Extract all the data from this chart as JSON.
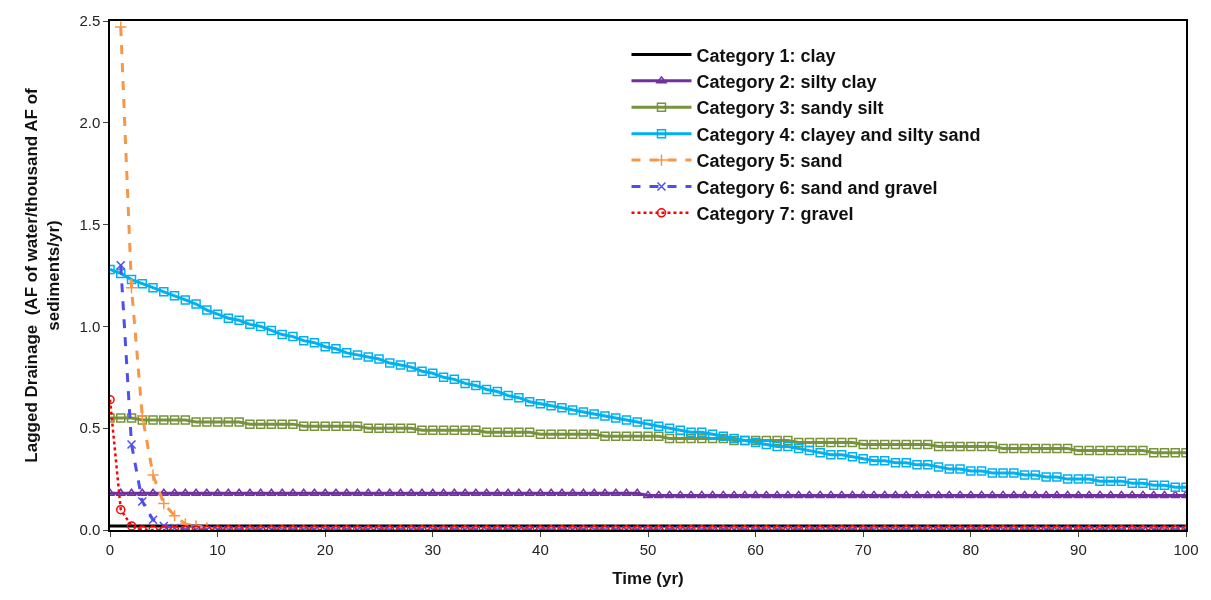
{
  "chart_data": {
    "type": "line",
    "xlabel": "Time (yr)",
    "ylabel": "Lagged Drainage  (AF of water/thousand AF of sediments/yr)",
    "x": [
      0,
      1,
      2,
      3,
      4,
      5,
      6,
      7,
      8,
      9,
      10,
      11,
      12,
      13,
      14,
      15,
      16,
      17,
      18,
      19,
      20,
      21,
      22,
      23,
      24,
      25,
      26,
      27,
      28,
      29,
      30,
      31,
      32,
      33,
      34,
      35,
      36,
      37,
      38,
      39,
      40,
      41,
      42,
      43,
      44,
      45,
      46,
      47,
      48,
      49,
      50,
      51,
      52,
      53,
      54,
      55,
      56,
      57,
      58,
      59,
      60,
      61,
      62,
      63,
      64,
      65,
      66,
      67,
      68,
      69,
      70,
      71,
      72,
      73,
      74,
      75,
      76,
      77,
      78,
      79,
      80,
      81,
      82,
      83,
      84,
      85,
      86,
      87,
      88,
      89,
      90,
      91,
      92,
      93,
      94,
      95,
      96,
      97,
      98,
      99,
      100
    ],
    "xlim": [
      0,
      100
    ],
    "xticks": [
      0,
      10,
      20,
      30,
      40,
      50,
      60,
      70,
      80,
      90,
      100
    ],
    "ylim": [
      0,
      2.5
    ],
    "yticks": [
      {
        "value": 0,
        "label": "0.0"
      },
      {
        "value": 0.5,
        "label": "0.5"
      },
      {
        "value": 1,
        "label": "1.0"
      },
      {
        "value": 1.5,
        "label": "1.5"
      },
      {
        "value": 2,
        "label": "2.0"
      },
      {
        "value": 2.5,
        "label": "2.5"
      }
    ],
    "legend": "top right",
    "series": [
      {
        "name": "Category 1: clay",
        "color": "#000000",
        "marker": "none",
        "line_style": "solid",
        "values": [
          0.02,
          0.02,
          0.02,
          0.02,
          0.02,
          0.02,
          0.02,
          0.02,
          0.02,
          0.02,
          0.02,
          0.02,
          0.02,
          0.02,
          0.02,
          0.02,
          0.02,
          0.02,
          0.02,
          0.02,
          0.02,
          0.02,
          0.02,
          0.02,
          0.02,
          0.02,
          0.02,
          0.02,
          0.02,
          0.02,
          0.02,
          0.02,
          0.02,
          0.02,
          0.02,
          0.02,
          0.02,
          0.02,
          0.02,
          0.02,
          0.02,
          0.02,
          0.02,
          0.02,
          0.02,
          0.02,
          0.02,
          0.02,
          0.02,
          0.02,
          0.02,
          0.02,
          0.02,
          0.02,
          0.02,
          0.02,
          0.02,
          0.02,
          0.02,
          0.02,
          0.02,
          0.02,
          0.02,
          0.02,
          0.02,
          0.02,
          0.02,
          0.02,
          0.02,
          0.02,
          0.02,
          0.02,
          0.02,
          0.02,
          0.02,
          0.02,
          0.02,
          0.02,
          0.02,
          0.02,
          0.02,
          0.02,
          0.02,
          0.02,
          0.02,
          0.02,
          0.02,
          0.02,
          0.02,
          0.02,
          0.02,
          0.02,
          0.02,
          0.02,
          0.02,
          0.02,
          0.02,
          0.02,
          0.02,
          0.02,
          0.02
        ]
      },
      {
        "name": "Category 2: silty clay",
        "color": "#7030a0",
        "marker": "triangle",
        "line_style": "solid",
        "values": [
          0.18,
          0.18,
          0.18,
          0.18,
          0.18,
          0.18,
          0.18,
          0.18,
          0.18,
          0.18,
          0.18,
          0.18,
          0.18,
          0.18,
          0.18,
          0.18,
          0.18,
          0.18,
          0.18,
          0.18,
          0.18,
          0.18,
          0.18,
          0.18,
          0.18,
          0.18,
          0.18,
          0.18,
          0.18,
          0.18,
          0.18,
          0.18,
          0.18,
          0.18,
          0.18,
          0.18,
          0.18,
          0.18,
          0.18,
          0.18,
          0.18,
          0.18,
          0.18,
          0.18,
          0.18,
          0.18,
          0.18,
          0.18,
          0.18,
          0.18,
          0.17,
          0.17,
          0.17,
          0.17,
          0.17,
          0.17,
          0.17,
          0.17,
          0.17,
          0.17,
          0.17,
          0.17,
          0.17,
          0.17,
          0.17,
          0.17,
          0.17,
          0.17,
          0.17,
          0.17,
          0.17,
          0.17,
          0.17,
          0.17,
          0.17,
          0.17,
          0.17,
          0.17,
          0.17,
          0.17,
          0.17,
          0.17,
          0.17,
          0.17,
          0.17,
          0.17,
          0.17,
          0.17,
          0.17,
          0.17,
          0.17,
          0.17,
          0.17,
          0.17,
          0.17,
          0.17,
          0.17,
          0.17,
          0.17,
          0.17,
          0.17
        ]
      },
      {
        "name": "Category 3: sandy silt",
        "color": "#77933c",
        "marker": "square",
        "line_style": "solid",
        "values": [
          0.55,
          0.55,
          0.55,
          0.54,
          0.54,
          0.54,
          0.54,
          0.54,
          0.53,
          0.53,
          0.53,
          0.53,
          0.53,
          0.52,
          0.52,
          0.52,
          0.52,
          0.52,
          0.51,
          0.51,
          0.51,
          0.51,
          0.51,
          0.51,
          0.5,
          0.5,
          0.5,
          0.5,
          0.5,
          0.49,
          0.49,
          0.49,
          0.49,
          0.49,
          0.49,
          0.48,
          0.48,
          0.48,
          0.48,
          0.48,
          0.47,
          0.47,
          0.47,
          0.47,
          0.47,
          0.47,
          0.46,
          0.46,
          0.46,
          0.46,
          0.46,
          0.46,
          0.45,
          0.45,
          0.45,
          0.45,
          0.45,
          0.45,
          0.44,
          0.44,
          0.44,
          0.44,
          0.44,
          0.44,
          0.43,
          0.43,
          0.43,
          0.43,
          0.43,
          0.43,
          0.42,
          0.42,
          0.42,
          0.42,
          0.42,
          0.42,
          0.42,
          0.41,
          0.41,
          0.41,
          0.41,
          0.41,
          0.41,
          0.4,
          0.4,
          0.4,
          0.4,
          0.4,
          0.4,
          0.4,
          0.39,
          0.39,
          0.39,
          0.39,
          0.39,
          0.39,
          0.39,
          0.38,
          0.38,
          0.38,
          0.38
        ]
      },
      {
        "name": "Category 4: clayey and silty sand",
        "color": "#00b0f0",
        "marker": "square",
        "line_style": "solid",
        "values": [
          1.28,
          1.26,
          1.23,
          1.21,
          1.19,
          1.17,
          1.15,
          1.13,
          1.11,
          1.08,
          1.06,
          1.04,
          1.03,
          1.01,
          1.0,
          0.98,
          0.96,
          0.95,
          0.93,
          0.92,
          0.9,
          0.89,
          0.87,
          0.86,
          0.85,
          0.84,
          0.82,
          0.81,
          0.8,
          0.78,
          0.77,
          0.75,
          0.74,
          0.72,
          0.71,
          0.69,
          0.68,
          0.66,
          0.65,
          0.63,
          0.62,
          0.61,
          0.6,
          0.59,
          0.58,
          0.57,
          0.56,
          0.55,
          0.54,
          0.53,
          0.52,
          0.51,
          0.5,
          0.49,
          0.48,
          0.48,
          0.47,
          0.46,
          0.45,
          0.44,
          0.43,
          0.42,
          0.41,
          0.41,
          0.4,
          0.39,
          0.38,
          0.37,
          0.37,
          0.36,
          0.35,
          0.34,
          0.34,
          0.33,
          0.33,
          0.32,
          0.32,
          0.31,
          0.3,
          0.3,
          0.29,
          0.29,
          0.28,
          0.28,
          0.28,
          0.27,
          0.27,
          0.26,
          0.26,
          0.25,
          0.25,
          0.25,
          0.24,
          0.24,
          0.24,
          0.23,
          0.23,
          0.22,
          0.22,
          0.21,
          0.21
        ]
      },
      {
        "name": "Category 5: sand",
        "color": "#f79646",
        "marker": "cross",
        "line_style": "dashed",
        "values": [
          null,
          2.47,
          1.19,
          0.56,
          0.27,
          0.13,
          0.07,
          0.03,
          0.02,
          0.01,
          0,
          0,
          0,
          0,
          0,
          0,
          0,
          0,
          0,
          0,
          0,
          0,
          0,
          0,
          0,
          0,
          0,
          0,
          0,
          0,
          0,
          0,
          0,
          0,
          0,
          0,
          0,
          0,
          0,
          0,
          0,
          0,
          0,
          0,
          0,
          0,
          0,
          0,
          0,
          0,
          0,
          0,
          0,
          0,
          0,
          0,
          0,
          0,
          0,
          0,
          0,
          0,
          0,
          0,
          0,
          0,
          0,
          0,
          0,
          0,
          0,
          0,
          0,
          0,
          0,
          0,
          0,
          0,
          0,
          0,
          0,
          0,
          0,
          0,
          0,
          0,
          0,
          0,
          0,
          0,
          0,
          0,
          0,
          0,
          0,
          0,
          0,
          0,
          0,
          0,
          0
        ]
      },
      {
        "name": "Category 6: sand and gravel",
        "color": "#4f4ff0",
        "marker": "x",
        "line_style": "dashed",
        "values": [
          null,
          1.3,
          0.42,
          0.14,
          0.05,
          0.02,
          0.01,
          0,
          0,
          0,
          0,
          0,
          0,
          0,
          0,
          0,
          0,
          0,
          0,
          0,
          0,
          0,
          0,
          0,
          0,
          0,
          0,
          0,
          0,
          0,
          0,
          0,
          0,
          0,
          0,
          0,
          0,
          0,
          0,
          0,
          0,
          0,
          0,
          0,
          0,
          0,
          0,
          0,
          0,
          0,
          0,
          0,
          0,
          0,
          0,
          0,
          0,
          0,
          0,
          0,
          0,
          0,
          0,
          0,
          0,
          0,
          0,
          0,
          0,
          0,
          0,
          0,
          0,
          0,
          0,
          0,
          0,
          0,
          0,
          0,
          0,
          0,
          0,
          0,
          0,
          0,
          0,
          0,
          0,
          0,
          0,
          0,
          0,
          0,
          0,
          0,
          0,
          0,
          0,
          0,
          0
        ]
      },
      {
        "name": "Category 7: gravel",
        "color": "#ff0000",
        "marker": "circle",
        "line_style": "dotted",
        "values": [
          0.64,
          0.1,
          0.02,
          0,
          0,
          0,
          0,
          0,
          0,
          0,
          0,
          0,
          0,
          0,
          0,
          0,
          0,
          0,
          0,
          0,
          0,
          0,
          0,
          0,
          0,
          0,
          0,
          0,
          0,
          0,
          0,
          0,
          0,
          0,
          0,
          0,
          0,
          0,
          0,
          0,
          0,
          0,
          0,
          0,
          0,
          0,
          0,
          0,
          0,
          0,
          0,
          0,
          0,
          0,
          0,
          0,
          0,
          0,
          0,
          0,
          0,
          0,
          0,
          0,
          0,
          0,
          0,
          0,
          0,
          0,
          0,
          0,
          0,
          0,
          0,
          0,
          0,
          0,
          0,
          0,
          0,
          0,
          0,
          0,
          0,
          0,
          0,
          0,
          0,
          0,
          0,
          0,
          0,
          0,
          0,
          0,
          0,
          0,
          0,
          0,
          0
        ]
      }
    ]
  }
}
